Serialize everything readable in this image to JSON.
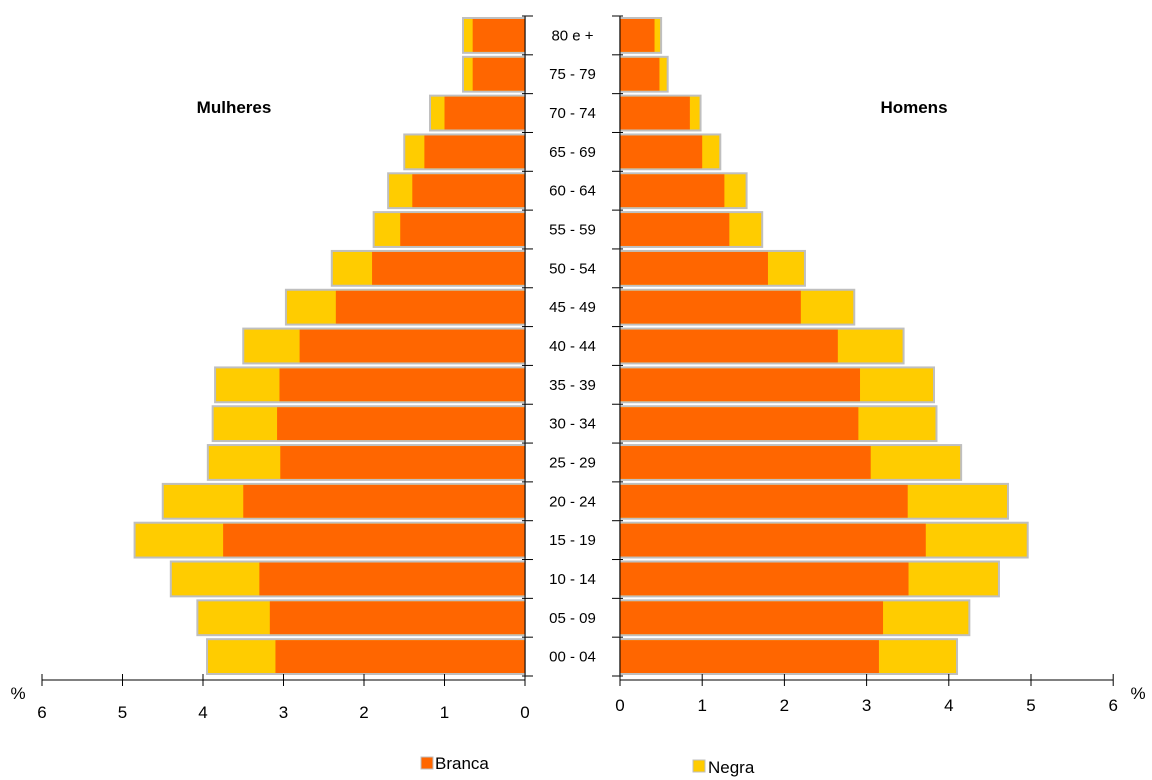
{
  "chart_data": {
    "type": "bar",
    "subtype": "population-pyramid",
    "age_groups": [
      "80 e +",
      "75 - 79",
      "70 - 74",
      "65 - 69",
      "60 - 64",
      "55 - 59",
      "50 - 54",
      "45 - 49",
      "40 - 44",
      "35 - 39",
      "30 - 34",
      "25 - 29",
      "20 - 24",
      "15 - 19",
      "10 - 14",
      "05 - 09",
      "00 - 04"
    ],
    "left_title": "Mulheres",
    "right_title": "Homens",
    "unit_label": "%",
    "left_axis_ticks": [
      "6",
      "5",
      "4",
      "3",
      "2",
      "1",
      "0"
    ],
    "right_axis_ticks": [
      "0",
      "1",
      "2",
      "3",
      "4",
      "5",
      "6"
    ],
    "xlim": [
      0,
      6
    ],
    "legend": [
      {
        "name": "Branca",
        "color": "#ff6600"
      },
      {
        "name": "Negra",
        "color": "#ffcc00"
      }
    ],
    "mulheres": {
      "branca": [
        0.65,
        0.65,
        1.0,
        1.25,
        1.4,
        1.55,
        1.9,
        2.35,
        2.8,
        3.05,
        3.08,
        3.04,
        3.5,
        3.75,
        3.3,
        3.17,
        3.1
      ],
      "negra": [
        0.12,
        0.12,
        0.18,
        0.25,
        0.3,
        0.33,
        0.5,
        0.62,
        0.7,
        0.8,
        0.8,
        0.9,
        1.0,
        1.1,
        1.1,
        0.9,
        0.85
      ]
    },
    "homens": {
      "branca": [
        0.42,
        0.48,
        0.85,
        1.0,
        1.27,
        1.33,
        1.8,
        2.2,
        2.65,
        2.92,
        2.9,
        3.05,
        3.5,
        3.72,
        3.51,
        3.2,
        3.15
      ],
      "negra": [
        0.08,
        0.1,
        0.13,
        0.22,
        0.27,
        0.4,
        0.45,
        0.65,
        0.8,
        0.9,
        0.95,
        1.1,
        1.22,
        1.24,
        1.1,
        1.05,
        0.95
      ]
    },
    "colors": {
      "branca": "#ff6600",
      "negra": "#ffcc00",
      "border": "#bfbfbf",
      "axis": "#000000"
    }
  }
}
